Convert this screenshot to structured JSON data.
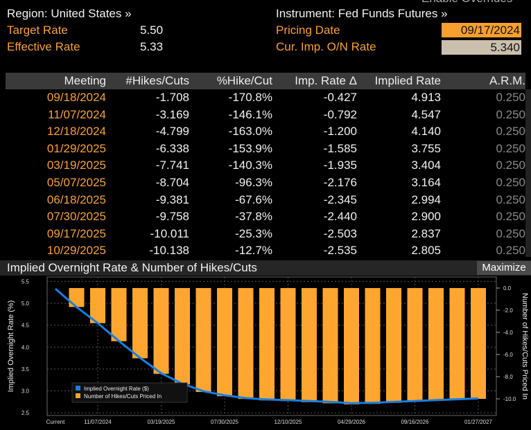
{
  "header": {
    "region": "Region: United States »",
    "target_rate_label": "Target Rate",
    "target_rate": "5.50",
    "effective_rate_label": "Effective Rate",
    "effective_rate": "5.33",
    "instrument": "Instrument: Fed Funds Futures »",
    "pricing_date_label": "Pricing Date",
    "pricing_date": "09/17/2024",
    "cur_rate_label": "Cur. Imp. O/N Rate",
    "cur_rate": "5.340",
    "overrides": "Enable Overrides"
  },
  "table": {
    "columns": [
      "Meeting",
      "#Hikes/Cuts",
      "%Hike/Cut",
      "Imp. Rate Δ",
      "Implied Rate",
      "A.R.M."
    ],
    "rows": [
      [
        "09/18/2024",
        "-1.708",
        "-170.8%",
        "-0.427",
        "4.913",
        "0.250"
      ],
      [
        "11/07/2024",
        "-3.169",
        "-146.1%",
        "-0.792",
        "4.547",
        "0.250"
      ],
      [
        "12/18/2024",
        "-4.799",
        "-163.0%",
        "-1.200",
        "4.140",
        "0.250"
      ],
      [
        "01/29/2025",
        "-6.338",
        "-153.9%",
        "-1.585",
        "3.755",
        "0.250"
      ],
      [
        "03/19/2025",
        "-7.741",
        "-140.3%",
        "-1.935",
        "3.404",
        "0.250"
      ],
      [
        "05/07/2025",
        "-8.704",
        "-96.3%",
        "-2.176",
        "3.164",
        "0.250"
      ],
      [
        "06/18/2025",
        "-9.381",
        "-67.6%",
        "-2.345",
        "2.994",
        "0.250"
      ],
      [
        "07/30/2025",
        "-9.758",
        "-37.8%",
        "-2.440",
        "2.900",
        "0.250"
      ],
      [
        "09/17/2025",
        "-10.011",
        "-25.3%",
        "-2.503",
        "2.837",
        "0.250"
      ],
      [
        "10/29/2025",
        "-10.138",
        "-12.7%",
        "-2.535",
        "2.805",
        "0.250"
      ]
    ]
  },
  "panel": {
    "title": "Implied Overnight Rate & Number of Hikes/Cuts",
    "button": "Maximize"
  },
  "chart_data": {
    "type": "bar-line",
    "categories": [
      "Current",
      null,
      "11/07/2024",
      null,
      null,
      "03/19/2025",
      null,
      null,
      "07/30/2025",
      null,
      null,
      "12/10/2025",
      null,
      null,
      "04/29/2026",
      null,
      null,
      "09/16/2026",
      null,
      null,
      "01/27/2027"
    ],
    "series": [
      {
        "name": "Implied Overnight Rate ($)",
        "color": "#1a7fe0",
        "type": "line",
        "values": [
          5.33,
          4.913,
          4.547,
          4.14,
          3.755,
          3.404,
          3.164,
          2.994,
          2.9,
          2.837,
          2.805,
          2.79,
          2.77,
          2.75,
          2.72,
          2.73,
          2.75,
          2.77,
          2.79,
          2.81,
          2.83
        ]
      },
      {
        "name": "Number of Hikes/Cuts Priced In",
        "color": "#ffa630",
        "type": "bar",
        "axis": "y2",
        "values": [
          null,
          -1.708,
          -3.169,
          -4.799,
          -6.338,
          -7.741,
          -8.704,
          -9.381,
          -9.758,
          -10.011,
          -10.138,
          -10.2,
          -10.3,
          -10.4,
          -10.5,
          -10.45,
          -10.35,
          -10.25,
          -10.15,
          -10.05,
          -10.0
        ]
      }
    ],
    "y_label": "Implied Overnight Rate (%)",
    "y2_label": "Number of Hikes/Cuts Priced In",
    "ylim": [
      2.44,
      5.6
    ],
    "yticks": [
      2.5,
      {
        "value": 3,
        "label": "3.0"
      },
      3.5,
      {
        "value": 4,
        "label": "4.0"
      },
      4.5,
      {
        "value": 5,
        "label": "5.0"
      },
      5.5
    ],
    "y2lim": [
      -11.5,
      1.0
    ],
    "y2ticks": [
      {
        "value": 0,
        "label": "0.0"
      },
      {
        "value": -2,
        "label": "-2.0"
      },
      {
        "value": -4,
        "label": "-4.0"
      },
      {
        "value": -6,
        "label": "-6.0"
      },
      {
        "value": -8,
        "label": "-8.0"
      },
      {
        "value": -10,
        "label": "-10.0"
      }
    ],
    "grid": true
  }
}
